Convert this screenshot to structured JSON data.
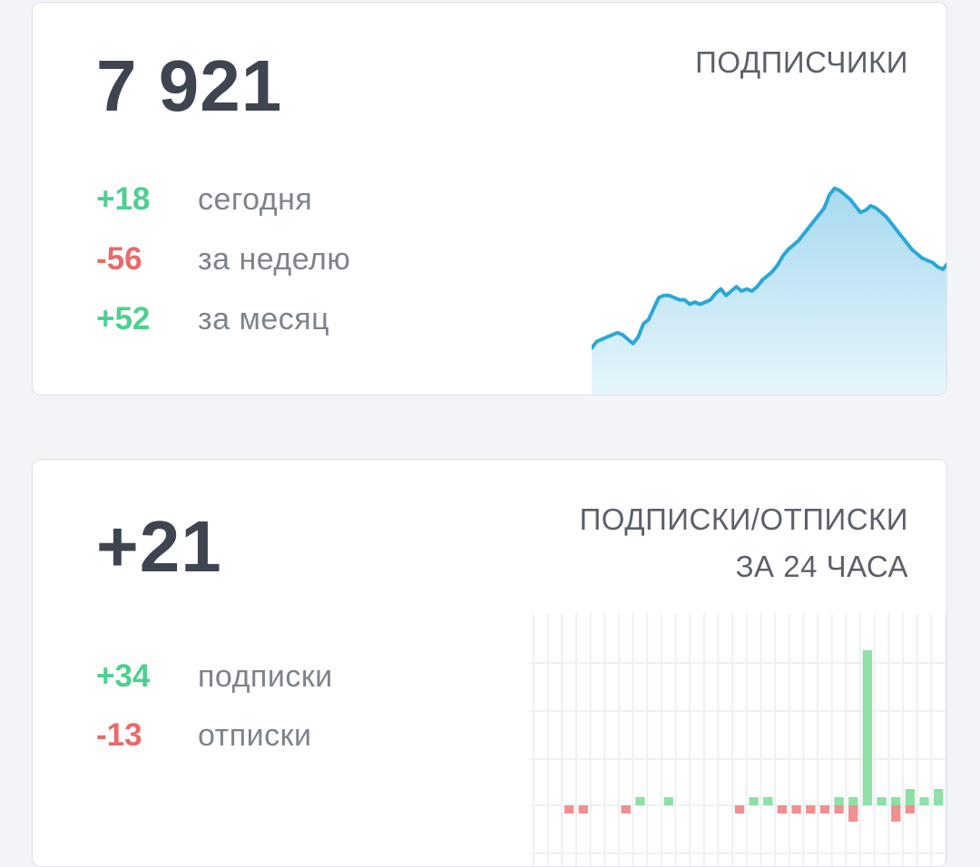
{
  "subscribers_card": {
    "total": "7 921",
    "title": "ПОДПИСЧИКИ",
    "stats": [
      {
        "value": "+18",
        "label": "сегодня",
        "sign": "pos"
      },
      {
        "value": "-56",
        "label": "за неделю",
        "sign": "neg"
      },
      {
        "value": "+52",
        "label": "за месяц",
        "sign": "pos"
      }
    ],
    "trend_values": [
      68,
      71,
      72,
      73,
      74,
      75,
      74,
      72,
      70,
      73,
      79,
      81,
      86,
      91,
      92,
      92,
      91,
      90,
      90,
      88,
      89,
      88,
      89,
      90,
      93,
      95,
      92,
      94,
      96,
      94,
      95,
      94,
      96,
      99,
      101,
      103,
      106,
      110,
      113,
      115,
      117,
      120,
      123,
      126,
      129,
      132,
      138,
      141,
      140,
      138,
      136,
      133,
      130,
      131,
      133,
      132,
      130,
      128,
      125,
      122,
      119,
      116,
      113,
      111,
      109,
      108,
      107,
      105,
      104,
      107
    ]
  },
  "net_card": {
    "total": "+21",
    "title_line1": "ПОДПИСКИ/ОТПИСКИ",
    "title_line2": "ЗА 24 ЧАСА",
    "stats": [
      {
        "value": "+34",
        "label": "подписки",
        "sign": "pos"
      },
      {
        "value": "-13",
        "label": "отписки",
        "sign": "neg"
      }
    ]
  },
  "chart_data": {
    "type": "bar",
    "subscribes": [
      0,
      0,
      0,
      0,
      0,
      0,
      0,
      1,
      0,
      1,
      0,
      0,
      0,
      0,
      0,
      1,
      1,
      0,
      0,
      0,
      0,
      1,
      1,
      19,
      1,
      1,
      2,
      1,
      2
    ],
    "unsubscribes": [
      0,
      0,
      -1,
      -1,
      0,
      0,
      -1,
      0,
      0,
      0,
      0,
      0,
      0,
      0,
      -1,
      0,
      0,
      -1,
      -1,
      -1,
      -1,
      -1,
      -2,
      0,
      0,
      -2,
      -1,
      0,
      0
    ]
  },
  "colors": {
    "positive": "#4fcf8f",
    "negative": "#e86a6a",
    "line": "#2aa8d6",
    "area": "#c9e9f5",
    "bar_pos": "#8ee0a6",
    "bar_neg": "#f09090"
  }
}
